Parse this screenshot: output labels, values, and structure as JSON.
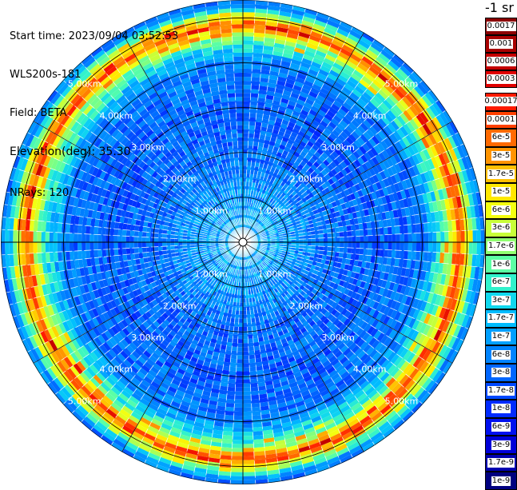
{
  "info": {
    "start_time": "Start time: 2023/09/04 03:52:53",
    "instrument": "WLS200s-181",
    "field": "Field: BETA",
    "elevation": "Elevation(deg): 35.30",
    "nrays": "NRays: 120"
  },
  "colorbar": {
    "unit": "-1 sr",
    "top_group": [
      {
        "label": "0.0017",
        "color": "#8b0000"
      },
      {
        "label": "0.001",
        "color": "#a80000"
      },
      {
        "label": "0.0006",
        "color": "#c40000"
      },
      {
        "label": "0.0003",
        "color": "#e00000"
      }
    ],
    "main_group": [
      {
        "label": "0.00017",
        "color": "#ff1a00"
      },
      {
        "label": "0.0001",
        "color": "#ff4000"
      },
      {
        "label": "6e-5",
        "color": "#ff6a00"
      },
      {
        "label": "3e-5",
        "color": "#ff9400"
      },
      {
        "label": "1.7e-5",
        "color": "#ffc000"
      },
      {
        "label": "1e-5",
        "color": "#ffe800"
      },
      {
        "label": "6e-6",
        "color": "#f4ff10"
      },
      {
        "label": "3e-6",
        "color": "#c8ff38"
      },
      {
        "label": "1.7e-6",
        "color": "#90ff70"
      },
      {
        "label": "1e-6",
        "color": "#5cffa4"
      },
      {
        "label": "6e-7",
        "color": "#30f2cc"
      },
      {
        "label": "3e-7",
        "color": "#10d8ee"
      },
      {
        "label": "1.7e-7",
        "color": "#00bcff"
      },
      {
        "label": "1e-7",
        "color": "#00a0ff"
      },
      {
        "label": "6e-8",
        "color": "#0084ff"
      },
      {
        "label": "3e-8",
        "color": "#0066ff"
      },
      {
        "label": "1.7e-8",
        "color": "#0048ff"
      },
      {
        "label": "1e-8",
        "color": "#002aff"
      },
      {
        "label": "6e-9",
        "color": "#0010f0"
      },
      {
        "label": "3e-9",
        "color": "#0000d8"
      },
      {
        "label": "1.7e-9",
        "color": "#0000b0"
      },
      {
        "label": "1e-9",
        "color": "#000080"
      }
    ]
  },
  "chart_data": {
    "type": "heatmap",
    "projection": "polar",
    "n_rays": 120,
    "rmax_km": 5.4,
    "range_rings_km": [
      1,
      2,
      3,
      4,
      5
    ],
    "ring_labels": [
      "1.00km",
      "2.00km",
      "3.00km",
      "4.00km",
      "5.00km"
    ],
    "grid": true,
    "radial_profile_log10_beta": [
      {
        "r_km": 0.0,
        "v": -7.0
      },
      {
        "r_km": 1.0,
        "v": -7.3
      },
      {
        "r_km": 2.0,
        "v": -7.7
      },
      {
        "r_km": 3.0,
        "v": -7.8
      },
      {
        "r_km": 4.0,
        "v": -7.6
      },
      {
        "r_km": 4.6,
        "v": -6.0
      },
      {
        "r_km": 4.85,
        "v": -4.3
      },
      {
        "r_km": 5.0,
        "v": -5.5
      },
      {
        "r_km": 5.3,
        "v": -7.5
      }
    ]
  }
}
